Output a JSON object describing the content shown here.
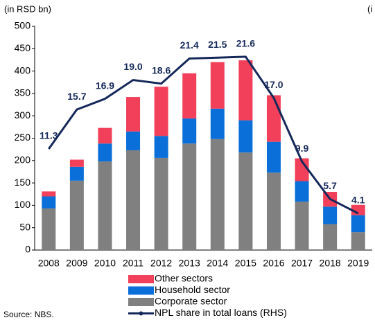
{
  "chart_data": {
    "type": "bar",
    "y_label": "(in RSD bn)",
    "y2_label": "(i",
    "source": "Source: NBS.",
    "categories": [
      "2008",
      "2009",
      "2010",
      "2011",
      "2012",
      "2013",
      "2014",
      "2015",
      "2016",
      "2017",
      "2018",
      "2019"
    ],
    "stacked": true,
    "series": [
      {
        "name": "Corporate sector",
        "color": "#808080",
        "values": [
          93,
          155,
          198,
          223,
          206,
          238,
          248,
          218,
          173,
          108,
          58,
          40
        ]
      },
      {
        "name": "Household sector",
        "color": "#0a6fd8",
        "values": [
          27,
          31,
          40,
          42,
          49,
          56,
          68,
          72,
          69,
          46,
          39,
          38
        ]
      },
      {
        "name": "Other sectors",
        "color": "#f2405a",
        "values": [
          11,
          16,
          35,
          77,
          110,
          101,
          104,
          134,
          104,
          51,
          33,
          23
        ]
      },
      {
        "name": "NPL share in total loans (RHS)",
        "color": "#14285a",
        "type": "line",
        "axis": "y2",
        "values": [
          11.3,
          15.7,
          16.9,
          19.0,
          18.6,
          21.4,
          21.5,
          21.6,
          17.0,
          9.9,
          5.7,
          4.1
        ],
        "value_labels": [
          "11.3",
          "15.7",
          "16.9",
          "19.0",
          "18.6",
          "21.4",
          "21.5",
          "21.6",
          "17.0",
          "9.9",
          "5.7",
          "4.1"
        ]
      }
    ],
    "ylim": [
      0,
      500
    ],
    "yticks": [
      0,
      50,
      100,
      150,
      200,
      250,
      300,
      350,
      400,
      450,
      500
    ],
    "y2lim": [
      0,
      25
    ]
  }
}
